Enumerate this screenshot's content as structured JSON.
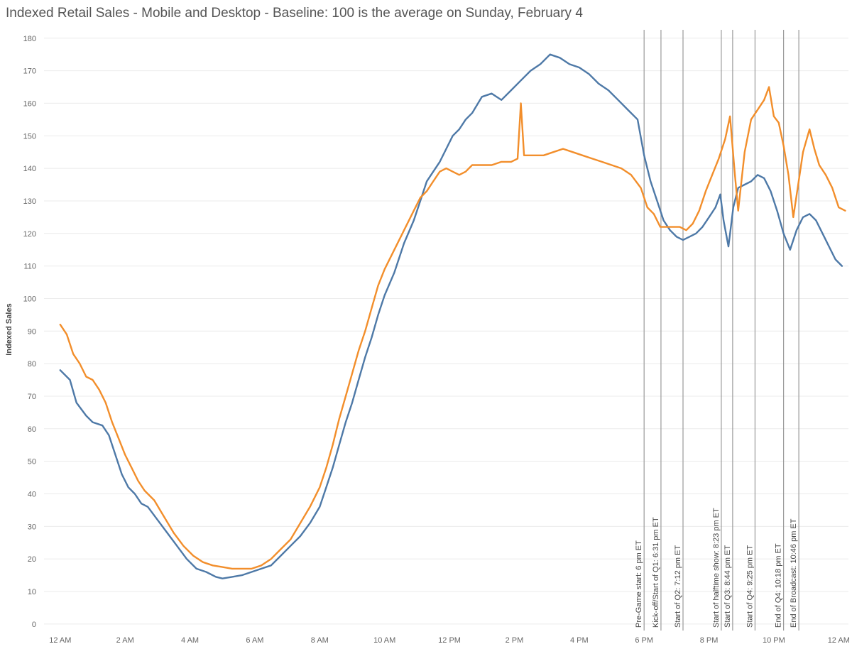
{
  "page": {
    "title": "Indexed Retail Sales - Mobile and Desktop - Baseline: 100 is the average on Sunday, February 4"
  },
  "chart_data": {
    "type": "line",
    "title": "Indexed Retail Sales - Mobile and Desktop - Baseline: 100 is the average on Sunday, February 4",
    "xlabel": "",
    "ylabel": "Indexed Sales",
    "x_unit": "hour",
    "xlim": [
      -0.5,
      24.3
    ],
    "ylim": [
      -2,
      183
    ],
    "yticks": [
      0,
      10,
      20,
      30,
      40,
      50,
      60,
      70,
      80,
      90,
      100,
      110,
      120,
      130,
      140,
      150,
      160,
      170,
      180
    ],
    "xticks": [
      {
        "x": 0,
        "label": "12 AM"
      },
      {
        "x": 2,
        "label": "2 AM"
      },
      {
        "x": 4,
        "label": "4 AM"
      },
      {
        "x": 6,
        "label": "6 AM"
      },
      {
        "x": 8,
        "label": "8 AM"
      },
      {
        "x": 10,
        "label": "10 AM"
      },
      {
        "x": 12,
        "label": "12 PM"
      },
      {
        "x": 14,
        "label": "2 PM"
      },
      {
        "x": 16,
        "label": "4 PM"
      },
      {
        "x": 18,
        "label": "6 PM"
      },
      {
        "x": 20,
        "label": "8 PM"
      },
      {
        "x": 22,
        "label": "10 PM"
      },
      {
        "x": 24,
        "label": "12 AM"
      }
    ],
    "grid": true,
    "series": [
      {
        "color": "#4e79a7",
        "points": [
          [
            0,
            78
          ],
          [
            0.3,
            75
          ],
          [
            0.5,
            68
          ],
          [
            0.8,
            64
          ],
          [
            1,
            62
          ],
          [
            1.3,
            61
          ],
          [
            1.5,
            58
          ],
          [
            1.7,
            52
          ],
          [
            1.9,
            46
          ],
          [
            2.1,
            42
          ],
          [
            2.3,
            40
          ],
          [
            2.5,
            37
          ],
          [
            2.7,
            36
          ],
          [
            3,
            32
          ],
          [
            3.3,
            28
          ],
          [
            3.6,
            24
          ],
          [
            3.9,
            20
          ],
          [
            4.2,
            17
          ],
          [
            4.5,
            16
          ],
          [
            4.8,
            14.5
          ],
          [
            5,
            14
          ],
          [
            5.3,
            14.5
          ],
          [
            5.6,
            15
          ],
          [
            5.9,
            16
          ],
          [
            6.2,
            17
          ],
          [
            6.5,
            18
          ],
          [
            6.8,
            21
          ],
          [
            7.1,
            24
          ],
          [
            7.4,
            27
          ],
          [
            7.7,
            31
          ],
          [
            8,
            36
          ],
          [
            8.2,
            42
          ],
          [
            8.4,
            48
          ],
          [
            8.6,
            55
          ],
          [
            8.8,
            62
          ],
          [
            9,
            68
          ],
          [
            9.2,
            75
          ],
          [
            9.4,
            82
          ],
          [
            9.6,
            88
          ],
          [
            9.8,
            95
          ],
          [
            10,
            101
          ],
          [
            10.3,
            108
          ],
          [
            10.6,
            117
          ],
          [
            10.9,
            124
          ],
          [
            11.1,
            130
          ],
          [
            11.3,
            136
          ],
          [
            11.5,
            139
          ],
          [
            11.7,
            142
          ],
          [
            11.9,
            146
          ],
          [
            12.1,
            150
          ],
          [
            12.3,
            152
          ],
          [
            12.5,
            155
          ],
          [
            12.7,
            157
          ],
          [
            13,
            162
          ],
          [
            13.3,
            163
          ],
          [
            13.6,
            161
          ],
          [
            13.9,
            164
          ],
          [
            14.2,
            167
          ],
          [
            14.5,
            170
          ],
          [
            14.8,
            172
          ],
          [
            15.1,
            175
          ],
          [
            15.4,
            174
          ],
          [
            15.7,
            172
          ],
          [
            16,
            171
          ],
          [
            16.3,
            169
          ],
          [
            16.6,
            166
          ],
          [
            16.9,
            164
          ],
          [
            17.2,
            161
          ],
          [
            17.5,
            158
          ],
          [
            17.8,
            155
          ],
          [
            18,
            144
          ],
          [
            18.2,
            136
          ],
          [
            18.4,
            130
          ],
          [
            18.6,
            124
          ],
          [
            18.8,
            121
          ],
          [
            19,
            119
          ],
          [
            19.2,
            118
          ],
          [
            19.4,
            119
          ],
          [
            19.6,
            120
          ],
          [
            19.8,
            122
          ],
          [
            20,
            125
          ],
          [
            20.2,
            128
          ],
          [
            20.35,
            132
          ],
          [
            20.45,
            124
          ],
          [
            20.6,
            116
          ],
          [
            20.75,
            128
          ],
          [
            20.9,
            134
          ],
          [
            21.1,
            135
          ],
          [
            21.3,
            136
          ],
          [
            21.5,
            138
          ],
          [
            21.7,
            137
          ],
          [
            21.9,
            133
          ],
          [
            22.1,
            127
          ],
          [
            22.3,
            120
          ],
          [
            22.5,
            115
          ],
          [
            22.7,
            121
          ],
          [
            22.9,
            125
          ],
          [
            23.1,
            126
          ],
          [
            23.3,
            124
          ],
          [
            23.5,
            120
          ],
          [
            23.7,
            116
          ],
          [
            23.9,
            112
          ],
          [
            24.1,
            110
          ]
        ]
      },
      {
        "color": "#f28e2b",
        "points": [
          [
            0,
            92
          ],
          [
            0.2,
            89
          ],
          [
            0.4,
            83
          ],
          [
            0.6,
            80
          ],
          [
            0.8,
            76
          ],
          [
            1,
            75
          ],
          [
            1.2,
            72
          ],
          [
            1.4,
            68
          ],
          [
            1.6,
            62
          ],
          [
            1.8,
            57
          ],
          [
            2,
            52
          ],
          [
            2.2,
            48
          ],
          [
            2.4,
            44
          ],
          [
            2.6,
            41
          ],
          [
            2.9,
            38
          ],
          [
            3.2,
            33
          ],
          [
            3.5,
            28
          ],
          [
            3.8,
            24
          ],
          [
            4.1,
            21
          ],
          [
            4.4,
            19
          ],
          [
            4.7,
            18
          ],
          [
            5,
            17.5
          ],
          [
            5.3,
            17
          ],
          [
            5.6,
            17
          ],
          [
            5.9,
            17
          ],
          [
            6.2,
            18
          ],
          [
            6.5,
            20
          ],
          [
            6.8,
            23
          ],
          [
            7.1,
            26
          ],
          [
            7.4,
            31
          ],
          [
            7.7,
            36
          ],
          [
            8,
            42
          ],
          [
            8.2,
            48
          ],
          [
            8.4,
            55
          ],
          [
            8.6,
            63
          ],
          [
            8.8,
            70
          ],
          [
            9,
            77
          ],
          [
            9.2,
            84
          ],
          [
            9.4,
            90
          ],
          [
            9.6,
            97
          ],
          [
            9.8,
            104
          ],
          [
            10,
            109
          ],
          [
            10.3,
            115
          ],
          [
            10.6,
            121
          ],
          [
            10.9,
            127
          ],
          [
            11.1,
            131
          ],
          [
            11.3,
            133
          ],
          [
            11.5,
            136
          ],
          [
            11.7,
            139
          ],
          [
            11.9,
            140
          ],
          [
            12.1,
            139
          ],
          [
            12.3,
            138
          ],
          [
            12.5,
            139
          ],
          [
            12.7,
            141
          ],
          [
            13,
            141
          ],
          [
            13.3,
            141
          ],
          [
            13.6,
            142
          ],
          [
            13.9,
            142
          ],
          [
            14.1,
            143
          ],
          [
            14.2,
            160
          ],
          [
            14.3,
            144
          ],
          [
            14.6,
            144
          ],
          [
            14.9,
            144
          ],
          [
            15.2,
            145
          ],
          [
            15.5,
            146
          ],
          [
            15.8,
            145
          ],
          [
            16.1,
            144
          ],
          [
            16.4,
            143
          ],
          [
            16.7,
            142
          ],
          [
            17,
            141
          ],
          [
            17.3,
            140
          ],
          [
            17.6,
            138
          ],
          [
            17.9,
            134
          ],
          [
            18.1,
            128
          ],
          [
            18.3,
            126
          ],
          [
            18.5,
            122
          ],
          [
            18.7,
            122
          ],
          [
            18.9,
            122
          ],
          [
            19.1,
            122
          ],
          [
            19.3,
            121
          ],
          [
            19.5,
            123
          ],
          [
            19.7,
            127
          ],
          [
            19.9,
            133
          ],
          [
            20.1,
            138
          ],
          [
            20.3,
            143
          ],
          [
            20.5,
            149
          ],
          [
            20.65,
            156
          ],
          [
            20.8,
            138
          ],
          [
            20.9,
            127
          ],
          [
            21.1,
            145
          ],
          [
            21.3,
            155
          ],
          [
            21.5,
            158
          ],
          [
            21.7,
            161
          ],
          [
            21.85,
            165
          ],
          [
            22,
            156
          ],
          [
            22.15,
            154
          ],
          [
            22.3,
            147
          ],
          [
            22.45,
            138
          ],
          [
            22.6,
            125
          ],
          [
            22.75,
            135
          ],
          [
            22.9,
            145
          ],
          [
            23.1,
            152
          ],
          [
            23.25,
            146
          ],
          [
            23.4,
            141
          ],
          [
            23.6,
            138
          ],
          [
            23.8,
            134
          ],
          [
            24,
            128
          ],
          [
            24.2,
            127
          ]
        ]
      }
    ],
    "annotations": [
      {
        "x": 18.0,
        "label": "Pre-Game start: 6 pm ET"
      },
      {
        "x": 18.52,
        "label": "Kick-off/Start of Q1: 6:31 pm ET"
      },
      {
        "x": 19.2,
        "label": "Start of Q2: 7:12 pm ET"
      },
      {
        "x": 20.38,
        "label": "Start of halftime show: 8:23 pm ET"
      },
      {
        "x": 20.73,
        "label": "Start of Q3: 8:44 pm ET"
      },
      {
        "x": 21.42,
        "label": "Start of Q4: 9:25 pm ET"
      },
      {
        "x": 22.3,
        "label": "End of Q4: 10:18 pm ET"
      },
      {
        "x": 22.77,
        "label": "End of Broadcast: 10:46 pm ET"
      }
    ]
  }
}
